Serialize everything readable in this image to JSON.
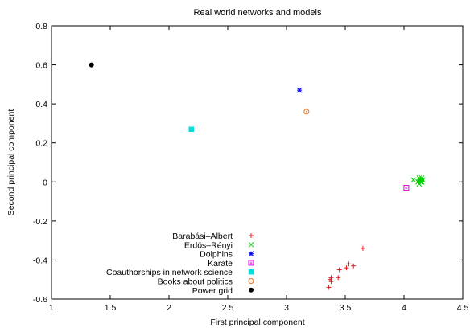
{
  "chart_data": {
    "type": "scatter",
    "title": "Real world networks and models",
    "xlabel": "First principal component",
    "ylabel": "Second principal component",
    "xlim": [
      1,
      4.5
    ],
    "ylim": [
      -0.6,
      0.8
    ],
    "xticks": [
      "1",
      "1.5",
      "2",
      "2.5",
      "3",
      "3.5",
      "4",
      "4.5"
    ],
    "yticks": [
      "-0.6",
      "-0.4",
      "-0.2",
      "0",
      "0.2",
      "0.4",
      "0.6",
      "0.8"
    ],
    "grid": false,
    "legend_position": "bottom-center",
    "series": [
      {
        "name": "Barabási–Albert",
        "marker": "plus",
        "color": "#e41a1c",
        "points": [
          [
            3.65,
            -0.34
          ],
          [
            3.57,
            -0.43
          ],
          [
            3.53,
            -0.42
          ],
          [
            3.51,
            -0.44
          ],
          [
            3.45,
            -0.45
          ],
          [
            3.44,
            -0.49
          ],
          [
            3.38,
            -0.49
          ],
          [
            3.38,
            -0.51
          ],
          [
            3.37,
            -0.5
          ],
          [
            3.36,
            -0.54
          ]
        ]
      },
      {
        "name": "Erdös–Rényi",
        "marker": "cross",
        "color": "#00cc00",
        "points": [
          [
            4.08,
            0.01
          ],
          [
            4.12,
            0.0
          ],
          [
            4.13,
            0.01
          ],
          [
            4.13,
            0.02
          ],
          [
            4.14,
            0.0
          ],
          [
            4.14,
            0.01
          ],
          [
            4.15,
            0.02
          ],
          [
            4.15,
            0.0
          ],
          [
            4.16,
            0.01
          ],
          [
            4.13,
            -0.01
          ],
          [
            4.15,
            0.01
          ]
        ]
      },
      {
        "name": "Dolphins",
        "marker": "star",
        "color": "#0000ee",
        "points": [
          [
            3.11,
            0.47
          ]
        ]
      },
      {
        "name": "Karate",
        "marker": "open-square",
        "color": "#dd00dd",
        "points": [
          [
            4.02,
            -0.03
          ]
        ]
      },
      {
        "name": "Coauthorships in network science",
        "marker": "filled-square",
        "color": "#00dddd",
        "points": [
          [
            2.19,
            0.27
          ]
        ]
      },
      {
        "name": "Books about politics",
        "marker": "open-circle",
        "color": "#e8701a",
        "points": [
          [
            3.17,
            0.36
          ]
        ]
      },
      {
        "name": "Power grid",
        "marker": "filled-circle",
        "color": "#000000",
        "points": [
          [
            1.34,
            0.6
          ]
        ]
      }
    ]
  }
}
